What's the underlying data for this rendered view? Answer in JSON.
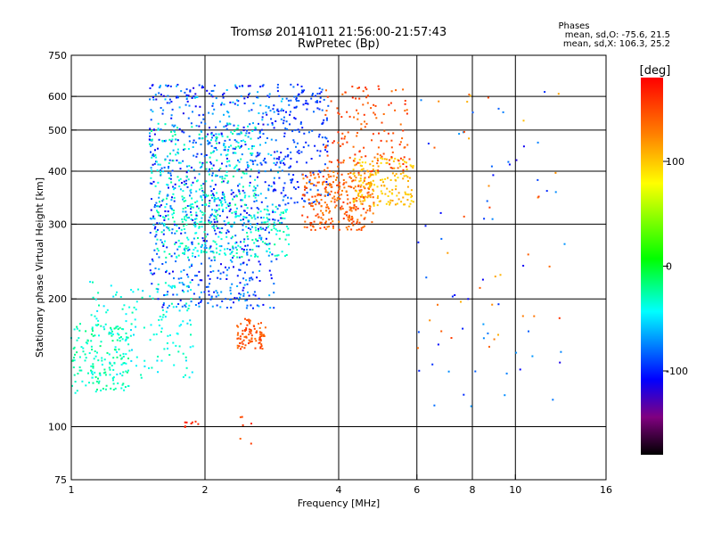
{
  "chart_data": {
    "type": "scatter",
    "title": "Tromsø 20141011 21:56:00-21:57:43",
    "subtitle": "RwPretec (Bp)",
    "xlabel": "Frequency [MHz]",
    "ylabel": "Stationary phase Virtual Height [km]",
    "x_scale": "log",
    "y_scale": "log",
    "xlim": [
      1,
      16
    ],
    "ylim": [
      75,
      750
    ],
    "x_ticks": [
      1,
      2,
      4,
      6,
      8,
      10,
      16
    ],
    "x_tick_labels": [
      "1",
      "2",
      "4",
      "6",
      "8",
      "10",
      "16"
    ],
    "y_ticks": [
      75,
      100,
      200,
      300,
      400,
      500,
      600,
      750
    ],
    "y_tick_labels": [
      "75",
      "100",
      "200",
      "300",
      "400",
      "500",
      "600",
      "750"
    ],
    "grid_x": [
      2,
      4,
      6,
      8,
      10
    ],
    "grid_y": [
      100,
      200,
      300,
      400,
      500,
      600
    ],
    "phase_info": {
      "heading": "Phases",
      "o_stats": "mean, sd,O: -75.6, 21.5",
      "x_stats": "mean, sd,X: 106.3, 25.2"
    },
    "colorbar": {
      "unit": "[deg]",
      "range": [
        -180,
        180
      ],
      "ticks": [
        100,
        0,
        -100
      ],
      "tick_labels": [
        "100",
        "0",
        "-100"
      ],
      "colors": [
        "#ff0000",
        "#ff8000",
        "#ffff00",
        "#00ff00",
        "#00ffff",
        "#0000ff",
        "#800080",
        "#000000"
      ]
    },
    "clusters": [
      {
        "name": "low-cyan",
        "f": [
          1.0,
          1.35
        ],
        "h": [
          120,
          175
        ],
        "phase": [
          -40,
          -15
        ],
        "n": 150
      },
      {
        "name": "cyan-mid",
        "f": [
          1.1,
          1.9
        ],
        "h": [
          130,
          220
        ],
        "phase": [
          -55,
          -25
        ],
        "n": 160
      },
      {
        "name": "blue-lower",
        "f": [
          1.5,
          2.9
        ],
        "h": [
          190,
          300
        ],
        "phase": [
          -115,
          -60
        ],
        "n": 300
      },
      {
        "name": "cyan-band",
        "f": [
          1.55,
          3.1
        ],
        "h": [
          250,
          330
        ],
        "phase": [
          -45,
          -20
        ],
        "n": 250
      },
      {
        "name": "blue-upper",
        "f": [
          1.5,
          3.0
        ],
        "h": [
          300,
          640
        ],
        "phase": [
          -120,
          -55
        ],
        "n": 600
      },
      {
        "name": "cyan-upper",
        "f": [
          1.5,
          2.6
        ],
        "h": [
          330,
          520
        ],
        "phase": [
          -45,
          -20
        ],
        "n": 200
      },
      {
        "name": "blue-trace",
        "f": [
          3.0,
          3.8
        ],
        "h": [
          330,
          640
        ],
        "phase": [
          -110,
          -80
        ],
        "n": 170
      },
      {
        "name": "orange-low",
        "f": [
          2.35,
          2.75
        ],
        "h": [
          152,
          180
        ],
        "phase": [
          130,
          160
        ],
        "n": 90
      },
      {
        "name": "orange-x",
        "f": [
          3.3,
          4.8
        ],
        "h": [
          290,
          400
        ],
        "phase": [
          120,
          160
        ],
        "n": 280
      },
      {
        "name": "yellow-x",
        "f": [
          4.3,
          5.9
        ],
        "h": [
          330,
          430
        ],
        "phase": [
          90,
          115
        ],
        "n": 170
      },
      {
        "name": "orange-upper",
        "f": [
          3.7,
          5.8
        ],
        "h": [
          400,
          640
        ],
        "phase": [
          130,
          165
        ],
        "n": 140
      },
      {
        "name": "red-bottom",
        "f": [
          1.8,
          1.95
        ],
        "h": [
          99,
          103
        ],
        "phase": [
          160,
          175
        ],
        "n": 8
      },
      {
        "name": "orange-bottom",
        "f": [
          2.4,
          2.55
        ],
        "h": [
          88,
          106
        ],
        "phase": [
          140,
          160
        ],
        "n": 6
      },
      {
        "name": "sparse-blue",
        "f": [
          6.0,
          13.0
        ],
        "h": [
          110,
          620
        ],
        "phase": [
          -120,
          -70
        ],
        "n": 55
      },
      {
        "name": "sparse-orange",
        "f": [
          6.0,
          13.0
        ],
        "h": [
          150,
          620
        ],
        "phase": [
          100,
          160
        ],
        "n": 35
      }
    ]
  }
}
